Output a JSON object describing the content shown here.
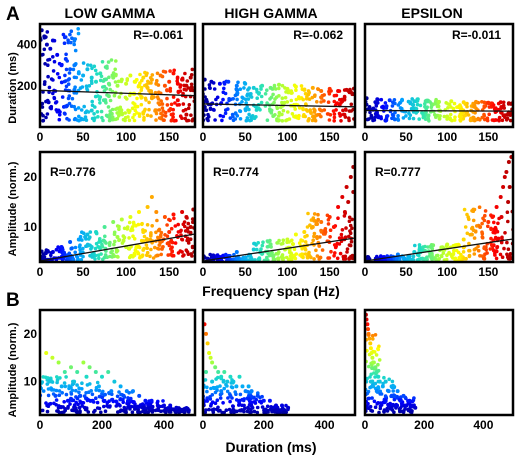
{
  "figure": {
    "panel_labels": [
      "A",
      "B"
    ],
    "column_titles": [
      "LOW GAMMA",
      "HIGH GAMMA",
      "EPSILON"
    ],
    "xlabel_A": "Frequency span (Hz)",
    "xlabel_B": "Duration (ms)",
    "ylabel_duration": "Duration (ms)",
    "ylabel_amplitude": "Amplitude (norm.)"
  },
  "colors": {
    "frame": "#000000",
    "regression_line": "#111111",
    "colormap": "jet",
    "colormap_stops": [
      "#00008f",
      "#0000ff",
      "#00a0ff",
      "#20e0c0",
      "#a0ff40",
      "#ffff00",
      "#ff9000",
      "#ff0000",
      "#a00000"
    ]
  },
  "chart_data": [
    {
      "id": "A-duration-lowgamma",
      "type": "scatter",
      "xlabel": "",
      "ylabel": "Duration (ms)",
      "xlim": [
        0,
        180
      ],
      "ylim": [
        0,
        500
      ],
      "xticks": [
        0,
        50,
        100,
        150
      ],
      "yticks": [
        200,
        400
      ],
      "annotation": "R=-0.061",
      "color_by": "x",
      "regression": {
        "x": [
          0,
          180
        ],
        "y": [
          178,
          152
        ]
      },
      "points": [
        [
          2,
          470
        ],
        [
          5,
          440
        ],
        [
          8,
          400
        ],
        [
          12,
          380
        ],
        [
          15,
          420
        ],
        [
          20,
          350
        ],
        [
          25,
          300
        ],
        [
          30,
          330
        ],
        [
          35,
          280
        ],
        [
          40,
          300
        ],
        [
          45,
          260
        ],
        [
          50,
          250
        ],
        [
          55,
          280
        ],
        [
          60,
          240
        ],
        [
          65,
          220
        ],
        [
          70,
          260
        ],
        [
          75,
          230
        ],
        [
          80,
          210
        ],
        [
          85,
          240
        ],
        [
          90,
          200
        ],
        [
          95,
          230
        ],
        [
          100,
          210
        ],
        [
          105,
          250
        ],
        [
          110,
          220
        ],
        [
          115,
          200
        ],
        [
          120,
          240
        ],
        [
          125,
          190
        ],
        [
          130,
          230
        ],
        [
          135,
          210
        ],
        [
          140,
          250
        ],
        [
          145,
          200
        ],
        [
          150,
          220
        ],
        [
          155,
          260
        ],
        [
          160,
          210
        ],
        [
          165,
          230
        ],
        [
          170,
          200
        ],
        [
          175,
          240
        ],
        [
          10,
          120
        ],
        [
          30,
          100
        ],
        [
          60,
          80
        ],
        [
          90,
          90
        ],
        [
          120,
          70
        ],
        [
          150,
          80
        ],
        [
          170,
          60
        ],
        [
          40,
          180
        ],
        [
          80,
          150
        ],
        [
          130,
          140
        ],
        [
          160,
          130
        ]
      ],
      "density": [
        [
          0,
          45,
          30,
          480
        ],
        [
          45,
          90,
          30,
          330
        ],
        [
          90,
          135,
          30,
          270
        ],
        [
          135,
          180,
          30,
          280
        ]
      ]
    },
    {
      "id": "A-duration-highgamma",
      "type": "scatter",
      "xlabel": "",
      "ylabel": "",
      "xlim": [
        0,
        180
      ],
      "ylim": [
        0,
        500
      ],
      "xticks": [
        0,
        50,
        100,
        150
      ],
      "yticks": [],
      "annotation": "R=-0.062",
      "color_by": "x",
      "regression": {
        "x": [
          0,
          180
        ],
        "y": [
          112,
          98
        ]
      },
      "points": [
        [
          2,
          230
        ],
        [
          10,
          220
        ],
        [
          20,
          210
        ],
        [
          30,
          220
        ],
        [
          40,
          200
        ],
        [
          50,
          210
        ],
        [
          60,
          190
        ],
        [
          70,
          200
        ],
        [
          80,
          190
        ],
        [
          90,
          205
        ],
        [
          100,
          185
        ],
        [
          110,
          195
        ],
        [
          120,
          180
        ],
        [
          130,
          190
        ],
        [
          140,
          175
        ],
        [
          150,
          185
        ],
        [
          160,
          175
        ],
        [
          170,
          180
        ],
        [
          175,
          170
        ]
      ],
      "density": [
        [
          0,
          60,
          30,
          225
        ],
        [
          60,
          120,
          30,
          205
        ],
        [
          120,
          180,
          30,
          190
        ]
      ]
    },
    {
      "id": "A-duration-epsilon",
      "type": "scatter",
      "xlabel": "",
      "ylabel": "",
      "xlim": [
        0,
        180
      ],
      "ylim": [
        0,
        500
      ],
      "xticks": [
        0,
        50,
        100,
        150
      ],
      "yticks": [],
      "annotation": "R=-0.011",
      "color_by": "x",
      "regression": {
        "x": [
          0,
          180
        ],
        "y": [
          80,
          77
        ]
      },
      "points": [
        [
          2,
          140
        ],
        [
          15,
          135
        ],
        [
          30,
          130
        ],
        [
          45,
          130
        ],
        [
          60,
          125
        ],
        [
          75,
          128
        ],
        [
          90,
          122
        ],
        [
          105,
          125
        ],
        [
          120,
          120
        ],
        [
          135,
          122
        ],
        [
          150,
          118
        ],
        [
          165,
          120
        ],
        [
          175,
          115
        ]
      ],
      "density": [
        [
          0,
          90,
          30,
          138
        ],
        [
          90,
          180,
          30,
          125
        ]
      ]
    },
    {
      "id": "A-amplitude-lowgamma",
      "type": "scatter",
      "xlabel": "",
      "ylabel": "Amplitude (norm.)",
      "xlim": [
        0,
        180
      ],
      "ylim": [
        3,
        25
      ],
      "xticks": [
        0,
        50,
        100,
        150
      ],
      "yticks": [
        10,
        20
      ],
      "annotation": "R=0.776",
      "color_by": "x",
      "regression": {
        "x": [
          0,
          180
        ],
        "y": [
          3.2,
          8.6
        ]
      },
      "points": [
        [
          5,
          4
        ],
        [
          15,
          5
        ],
        [
          25,
          6
        ],
        [
          35,
          7
        ],
        [
          45,
          7.5
        ],
        [
          55,
          8.5
        ],
        [
          65,
          9
        ],
        [
          75,
          10
        ],
        [
          85,
          11
        ],
        [
          95,
          11.5
        ],
        [
          105,
          12
        ],
        [
          115,
          13
        ],
        [
          125,
          14
        ],
        [
          130,
          16
        ],
        [
          135,
          13
        ],
        [
          145,
          12
        ],
        [
          155,
          12.5
        ],
        [
          165,
          13
        ],
        [
          170,
          12
        ],
        [
          178,
          13.5
        ],
        [
          60,
          6
        ],
        [
          90,
          8
        ],
        [
          120,
          9
        ],
        [
          150,
          9
        ],
        [
          175,
          10
        ],
        [
          100,
          6
        ],
        [
          140,
          7
        ],
        [
          160,
          8
        ]
      ],
      "density": [
        [
          0,
          45,
          3.2,
          6
        ],
        [
          45,
          90,
          3.4,
          9
        ],
        [
          90,
          135,
          3.8,
          11
        ],
        [
          135,
          180,
          4.2,
          12
        ]
      ]
    },
    {
      "id": "A-amplitude-highgamma",
      "type": "scatter",
      "xlabel": "",
      "ylabel": "",
      "xlim": [
        0,
        180
      ],
      "ylim": [
        3,
        25
      ],
      "xticks": [
        0,
        50,
        100,
        150
      ],
      "yticks": [],
      "annotation": "R=0.774",
      "color_by": "x",
      "regression": {
        "x": [
          0,
          180
        ],
        "y": [
          3.2,
          7.8
        ]
      },
      "points": [
        [
          20,
          4
        ],
        [
          40,
          5
        ],
        [
          60,
          5.5
        ],
        [
          80,
          6.5
        ],
        [
          100,
          7.5
        ],
        [
          110,
          8.5
        ],
        [
          120,
          9
        ],
        [
          130,
          10
        ],
        [
          140,
          11
        ],
        [
          150,
          12
        ],
        [
          160,
          14
        ],
        [
          165,
          16
        ],
        [
          170,
          18
        ],
        [
          175,
          20
        ],
        [
          178,
          22
        ],
        [
          172,
          15
        ],
        [
          168,
          13
        ],
        [
          155,
          10
        ],
        [
          145,
          9
        ],
        [
          135,
          8
        ],
        [
          178,
          17
        ]
      ],
      "density": [
        [
          0,
          60,
          3.1,
          4.5
        ],
        [
          60,
          120,
          3.3,
          7.5
        ],
        [
          120,
          180,
          3.6,
          13
        ]
      ]
    },
    {
      "id": "A-amplitude-epsilon",
      "type": "scatter",
      "xlabel": "",
      "ylabel": "",
      "xlim": [
        0,
        180
      ],
      "ylim": [
        3,
        25
      ],
      "xticks": [
        0,
        50,
        100,
        150
      ],
      "yticks": [],
      "annotation": "R=0.777",
      "color_by": "x",
      "regression": {
        "x": [
          0,
          180
        ],
        "y": [
          3.2,
          7.6
        ]
      },
      "points": [
        [
          20,
          4
        ],
        [
          40,
          4.5
        ],
        [
          60,
          5
        ],
        [
          80,
          6
        ],
        [
          100,
          6.5
        ],
        [
          120,
          7.5
        ],
        [
          130,
          8.5
        ],
        [
          140,
          10
        ],
        [
          150,
          11
        ],
        [
          155,
          12
        ],
        [
          160,
          14
        ],
        [
          165,
          16
        ],
        [
          168,
          18
        ],
        [
          170,
          20
        ],
        [
          172,
          21
        ],
        [
          175,
          23
        ],
        [
          178,
          24
        ],
        [
          176,
          18
        ],
        [
          174,
          15
        ],
        [
          166,
          12
        ],
        [
          158,
          9
        ]
      ],
      "density": [
        [
          0,
          60,
          3.1,
          4.2
        ],
        [
          60,
          120,
          3.3,
          6.5
        ],
        [
          120,
          180,
          3.6,
          14
        ]
      ]
    },
    {
      "id": "B-amplitude-lowgamma",
      "type": "scatter",
      "xlabel": "",
      "ylabel": "Amplitude (norm.)",
      "xlim": [
        0,
        500
      ],
      "ylim": [
        3,
        25
      ],
      "xticks": [
        0,
        200,
        400
      ],
      "yticks": [
        10,
        20
      ],
      "annotation": "",
      "color_by": "amplitude",
      "points": [
        [
          20,
          16
        ],
        [
          40,
          15
        ],
        [
          60,
          14
        ],
        [
          80,
          12
        ],
        [
          100,
          13
        ],
        [
          120,
          12
        ],
        [
          140,
          14
        ],
        [
          160,
          13
        ],
        [
          180,
          12
        ],
        [
          200,
          11
        ],
        [
          220,
          12
        ],
        [
          240,
          10
        ],
        [
          260,
          9
        ],
        [
          280,
          8
        ],
        [
          300,
          8
        ],
        [
          320,
          7
        ],
        [
          340,
          6
        ],
        [
          360,
          6
        ],
        [
          380,
          5
        ],
        [
          400,
          5
        ],
        [
          420,
          5
        ],
        [
          440,
          4.5
        ],
        [
          460,
          4
        ],
        [
          480,
          4
        ],
        [
          30,
          10
        ],
        [
          70,
          9
        ],
        [
          110,
          10
        ],
        [
          150,
          11
        ],
        [
          190,
          9
        ],
        [
          230,
          8
        ],
        [
          270,
          7
        ],
        [
          50,
          7
        ],
        [
          90,
          6
        ],
        [
          130,
          7
        ],
        [
          170,
          6
        ]
      ],
      "density": [
        [
          0,
          100,
          3.5,
          11
        ],
        [
          100,
          200,
          3.5,
          10
        ],
        [
          200,
          300,
          3.5,
          8
        ],
        [
          300,
          400,
          3.5,
          6
        ],
        [
          400,
          480,
          3.5,
          4.5
        ]
      ]
    },
    {
      "id": "B-amplitude-highgamma",
      "type": "scatter",
      "xlabel": "",
      "ylabel": "",
      "xlim": [
        0,
        500
      ],
      "ylim": [
        3,
        25
      ],
      "xticks": [
        0,
        200,
        400
      ],
      "yticks": [],
      "annotation": "",
      "color_by": "amplitude",
      "points": [
        [
          5,
          22
        ],
        [
          10,
          20
        ],
        [
          15,
          18
        ],
        [
          20,
          16
        ],
        [
          25,
          15
        ],
        [
          30,
          14
        ],
        [
          40,
          13
        ],
        [
          50,
          12
        ],
        [
          60,
          11
        ],
        [
          70,
          12
        ],
        [
          80,
          10
        ],
        [
          90,
          11
        ],
        [
          100,
          10
        ],
        [
          110,
          9
        ],
        [
          120,
          11
        ],
        [
          130,
          9
        ],
        [
          140,
          8
        ],
        [
          150,
          9
        ],
        [
          160,
          8
        ],
        [
          180,
          7
        ],
        [
          200,
          6
        ],
        [
          220,
          6
        ],
        [
          240,
          5
        ],
        [
          260,
          5
        ],
        [
          280,
          4.5
        ],
        [
          10,
          12
        ],
        [
          30,
          10
        ],
        [
          60,
          8
        ],
        [
          90,
          7
        ],
        [
          120,
          6
        ]
      ],
      "density": [
        [
          0,
          100,
          3.5,
          11
        ],
        [
          100,
          200,
          3.5,
          8
        ],
        [
          200,
          280,
          3.5,
          5
        ]
      ]
    },
    {
      "id": "B-amplitude-epsilon",
      "type": "scatter",
      "xlabel": "",
      "ylabel": "",
      "xlim": [
        0,
        500
      ],
      "ylim": [
        3,
        25
      ],
      "xticks": [
        0,
        200,
        400
      ],
      "yticks": [],
      "annotation": "",
      "color_by": "amplitude",
      "points": [
        [
          3,
          24
        ],
        [
          5,
          23
        ],
        [
          8,
          22
        ],
        [
          10,
          21
        ],
        [
          12,
          20
        ],
        [
          15,
          19
        ],
        [
          18,
          18
        ],
        [
          20,
          17
        ],
        [
          22,
          16
        ],
        [
          25,
          15
        ],
        [
          30,
          14
        ],
        [
          35,
          13
        ],
        [
          40,
          12
        ],
        [
          45,
          11
        ],
        [
          50,
          10
        ],
        [
          60,
          9
        ],
        [
          70,
          10
        ],
        [
          80,
          8
        ],
        [
          90,
          9
        ],
        [
          100,
          7
        ],
        [
          110,
          8
        ],
        [
          120,
          6
        ],
        [
          130,
          7
        ],
        [
          140,
          5
        ],
        [
          150,
          6
        ],
        [
          160,
          5
        ],
        [
          170,
          4.5
        ],
        [
          20,
          10
        ],
        [
          40,
          8
        ],
        [
          70,
          6
        ],
        [
          100,
          5
        ]
      ],
      "density": [
        [
          0,
          50,
          3.5,
          20
        ],
        [
          50,
          100,
          3.5,
          11
        ],
        [
          100,
          170,
          3.5,
          7
        ]
      ]
    }
  ]
}
